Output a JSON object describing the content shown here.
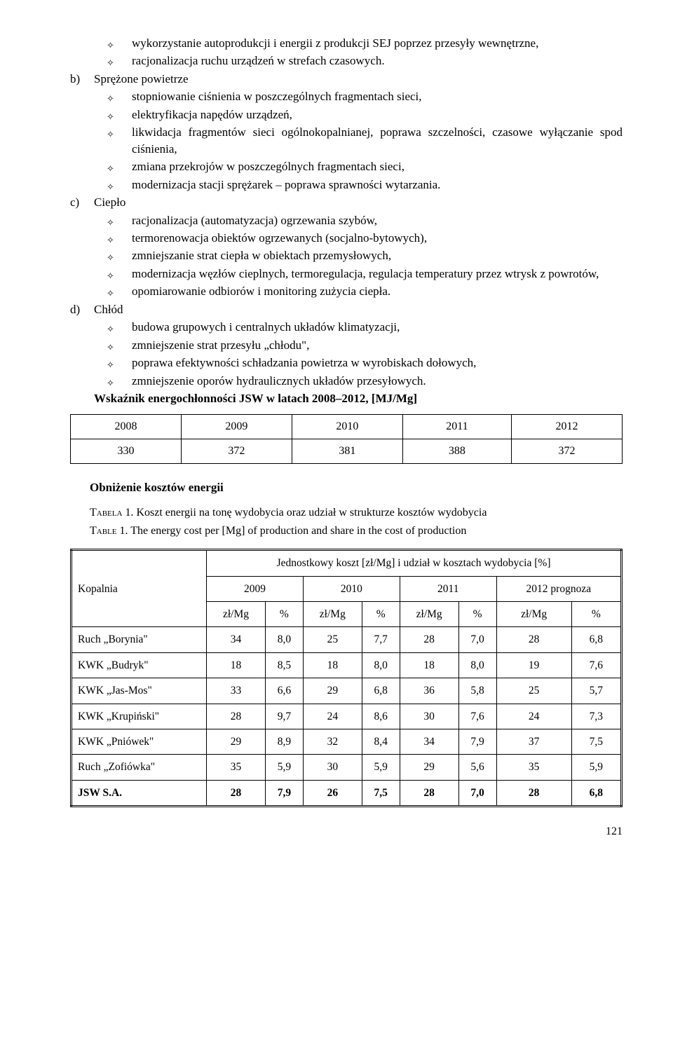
{
  "section_a_pre": [
    "wykorzystanie autoprodukcji i energii z produkcji SEJ poprzez przesyły wewnętrzne,",
    "racjonalizacja ruchu urządzeń w strefach czasowych."
  ],
  "section_b": {
    "label": "b)",
    "title": "Sprężone powietrze",
    "items": [
      "stopniowanie ciśnienia w poszczególnych fragmentach sieci,",
      "elektryfikacja napędów urządzeń,",
      "likwidacja fragmentów sieci ogólnokopalnianej, poprawa szczelności, czasowe wyłączanie spod ciśnienia,",
      "zmiana przekrojów w poszczególnych fragmentach sieci,",
      "modernizacja stacji sprężarek – poprawa sprawności wytarzania."
    ]
  },
  "section_c": {
    "label": "c)",
    "title": "Ciepło",
    "items": [
      "racjonalizacja (automatyzacja) ogrzewania szybów,",
      "termorenowacja obiektów ogrzewanych (socjalno-bytowych),",
      "zmniejszanie strat ciepła w obiektach przemysłowych,",
      "modernizacja węzłów cieplnych, termoregulacja, regulacja temperatury przez wtrysk z powrotów,",
      "opomiarowanie odbiorów i monitoring zużycia ciepła."
    ]
  },
  "section_d": {
    "label": "d)",
    "title": "Chłód",
    "items": [
      "budowa grupowych i centralnych układów klimatyzacji,",
      "zmniejszenie strat przesyłu „chłodu\",",
      "poprawa efektywności schładzania powietrza w wyrobiskach dołowych,",
      "zmniejszenie oporów hydraulicznych układów przesyłowych."
    ]
  },
  "wskaznik_title": "Wskaźnik energochłonności JSW w latach 2008–2012, [MJ/Mg]",
  "table1": {
    "years": [
      "2008",
      "2009",
      "2010",
      "2011",
      "2012"
    ],
    "values": [
      "330",
      "372",
      "381",
      "388",
      "372"
    ]
  },
  "cost_heading": "Obniżenie kosztów energii",
  "tabela_label": "Tabela",
  "tabela_num": "1.",
  "tabela_caption": "Koszt energii na tonę wydobycia oraz udział w strukturze kosztów wydobycia",
  "table_label": "Table",
  "table_num": "1.",
  "table_caption": "The energy cost per [Mg] of production and share in the cost of production",
  "table2": {
    "row_header": "Kopalnia",
    "super_header": "Jednostkowy koszt [zł/Mg] i udział w kosztach wydobycia [%]",
    "years": [
      "2009",
      "2010",
      "2011",
      "2012 prognoza"
    ],
    "sub": [
      "zł/Mg",
      "%",
      "zł/Mg",
      "%",
      "zł/Mg",
      "%",
      "zł/Mg",
      "%"
    ],
    "rows": [
      {
        "name": "Ruch „Borynia\"",
        "v": [
          "34",
          "8,0",
          "25",
          "7,7",
          "28",
          "7,0",
          "28",
          "6,8"
        ]
      },
      {
        "name": "KWK „Budryk\"",
        "v": [
          "18",
          "8,5",
          "18",
          "8,0",
          "18",
          "8,0",
          "19",
          "7,6"
        ]
      },
      {
        "name": "KWK „Jas-Mos\"",
        "v": [
          "33",
          "6,6",
          "29",
          "6,8",
          "36",
          "5,8",
          "25",
          "5,7"
        ]
      },
      {
        "name": "KWK „Krupiński\"",
        "v": [
          "28",
          "9,7",
          "24",
          "8,6",
          "30",
          "7,6",
          "24",
          "7,3"
        ]
      },
      {
        "name": "KWK „Pniówek\"",
        "v": [
          "29",
          "8,9",
          "32",
          "8,4",
          "34",
          "7,9",
          "37",
          "7,5"
        ]
      },
      {
        "name": "Ruch „Zofiówka\"",
        "v": [
          "35",
          "5,9",
          "30",
          "5,9",
          "29",
          "5,6",
          "35",
          "5,9"
        ]
      }
    ],
    "total": {
      "name": "JSW S.A.",
      "v": [
        "28",
        "7,9",
        "26",
        "7,5",
        "28",
        "7,0",
        "28",
        "6,8"
      ]
    }
  },
  "page_number": "121"
}
